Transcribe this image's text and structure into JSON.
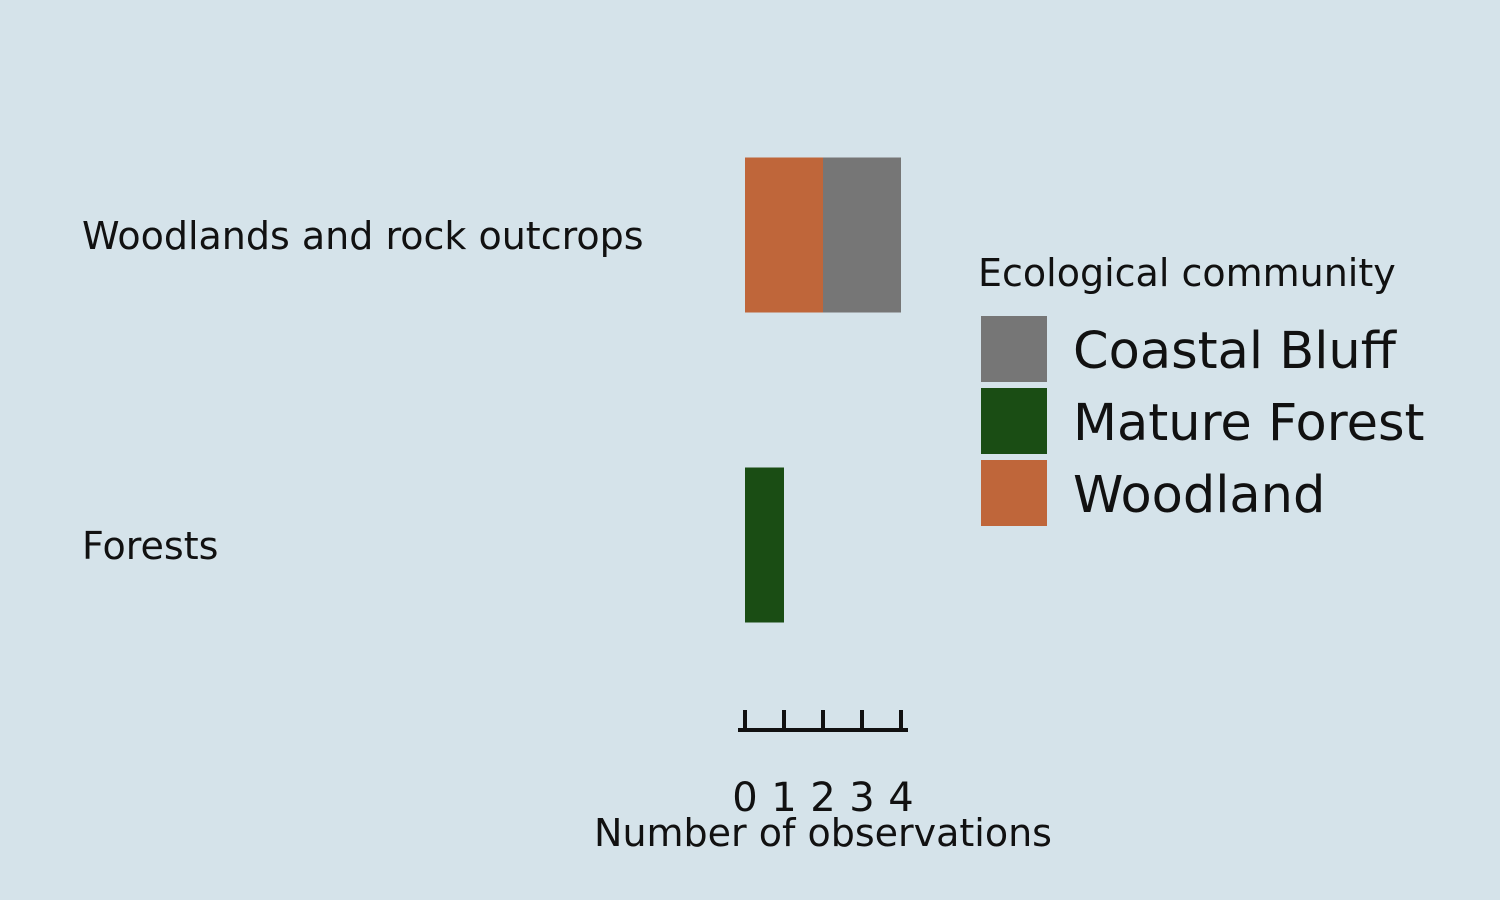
{
  "chart_data": {
    "type": "bar",
    "orientation": "horizontal",
    "stacked": true,
    "categories": [
      "Woodlands and rock outcrops",
      "Forests"
    ],
    "series": [
      {
        "name": "Woodland",
        "color": "#bf663a",
        "values": [
          2,
          0
        ]
      },
      {
        "name": "Coastal Bluff",
        "color": "#767676",
        "values": [
          2,
          0
        ]
      },
      {
        "name": "Mature Forest",
        "color": "#1a4d14",
        "values": [
          0,
          1
        ]
      }
    ],
    "xlabel": "Number of observations",
    "ylabel": "",
    "xlim": [
      0,
      4
    ],
    "xticks": [
      "0",
      "1",
      "2",
      "3",
      "4"
    ],
    "grid": false,
    "legend": {
      "title": "Ecological community",
      "placement": "right",
      "entries": [
        {
          "name": "Coastal Bluff",
          "color": "#767676"
        },
        {
          "name": "Mature Forest",
          "color": "#1a4d14"
        },
        {
          "name": "Woodland",
          "color": "#bf663a"
        }
      ]
    }
  }
}
